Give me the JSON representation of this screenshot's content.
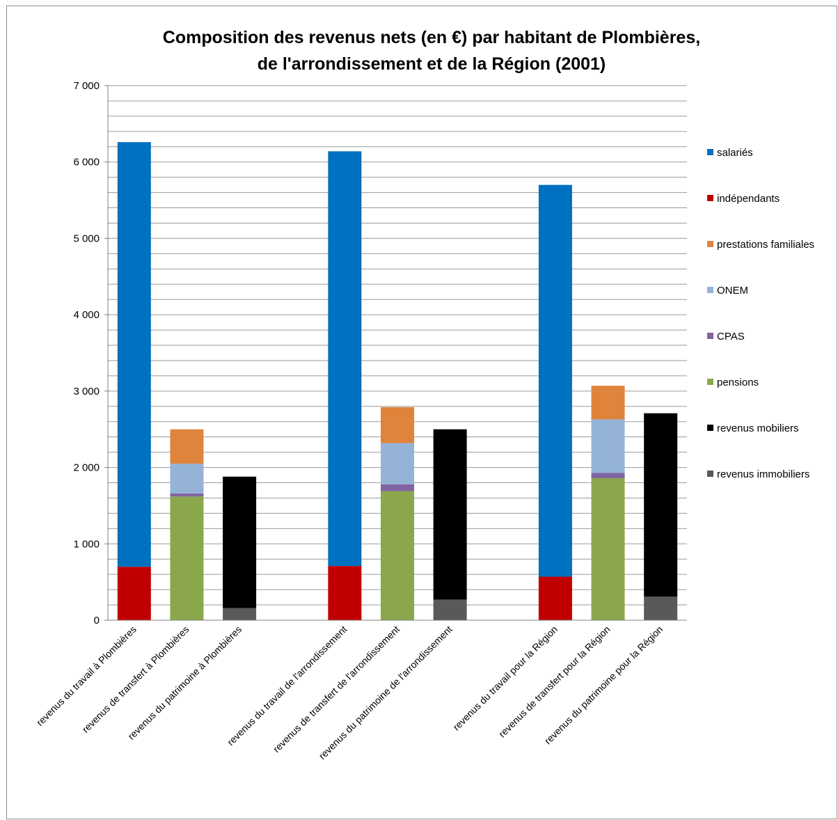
{
  "chart_data": {
    "type": "bar",
    "stacked": true,
    "title": "Composition des revenus nets (en €) par habitant de Plombières,",
    "subtitle": "de l'arrondissement et de la Région (2001)",
    "xlabel": "",
    "ylabel": "",
    "ylim": [
      0,
      7000
    ],
    "yticks": [
      0,
      1000,
      2000,
      3000,
      4000,
      5000,
      6000,
      7000
    ],
    "ytick_labels": [
      "0",
      "1 000",
      "2 000",
      "3 000",
      "4 000",
      "5 000",
      "6 000",
      "7 000"
    ],
    "grid": true,
    "legend_position": "right",
    "categories": [
      "revenus du travail à Plombières",
      "revenus de transfert à Plombières",
      "revenus du patrimoine à Plombières",
      "revenus du travail de l'arrondissement",
      "revenus de transfert de l'arrondissement",
      "revenus du patrimoine de l'arrondissement",
      "revenus du travail pour la Région",
      "revenus de transfert pour la Région",
      "revenus du patrimoine pour la Région"
    ],
    "series": [
      {
        "name": "salariés",
        "color": "#0070C0",
        "values": [
          5560,
          0,
          0,
          5430,
          0,
          0,
          5130,
          0,
          0
        ]
      },
      {
        "name": "indépendants",
        "color": "#C00000",
        "values": [
          700,
          0,
          0,
          710,
          0,
          0,
          570,
          0,
          0
        ]
      },
      {
        "name": "prestations familiales",
        "color": "#E0843C",
        "values": [
          0,
          450,
          0,
          0,
          470,
          0,
          0,
          440,
          0
        ]
      },
      {
        "name": "ONEM",
        "color": "#95B3D7",
        "values": [
          0,
          390,
          0,
          0,
          540,
          0,
          0,
          700,
          0
        ]
      },
      {
        "name": "CPAS",
        "color": "#8064A2",
        "values": [
          0,
          40,
          0,
          0,
          90,
          0,
          0,
          70,
          0
        ]
      },
      {
        "name": "pensions",
        "color": "#8AA84B",
        "values": [
          0,
          1620,
          0,
          0,
          1690,
          0,
          0,
          1860,
          0
        ]
      },
      {
        "name": "revenus mobiliers",
        "color": "#000000",
        "values": [
          0,
          0,
          1720,
          0,
          0,
          2230,
          0,
          0,
          2400
        ]
      },
      {
        "name": "revenus immobiliers",
        "color": "#595959",
        "values": [
          0,
          0,
          160,
          0,
          0,
          270,
          0,
          0,
          310
        ]
      }
    ]
  }
}
